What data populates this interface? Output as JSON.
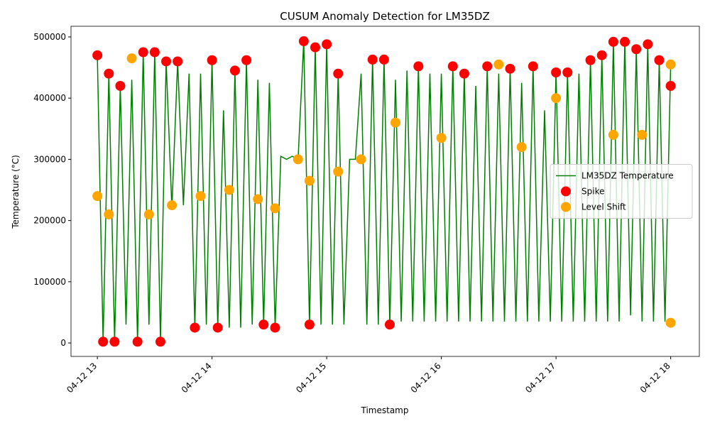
{
  "chart_data": {
    "type": "line",
    "title": "CUSUM Anomaly Detection for LM35DZ",
    "x_label": "Timestamp",
    "y_label": "Temperature (°C)",
    "xlim": [
      12.77,
      18.25
    ],
    "xticks": [
      {
        "value": 13,
        "label": "04-12 13"
      },
      {
        "value": 14,
        "label": "04-12 14"
      },
      {
        "value": 15,
        "label": "04-12 15"
      },
      {
        "value": 16,
        "label": "04-12 16"
      },
      {
        "value": 17,
        "label": "04-12 17"
      },
      {
        "value": 18,
        "label": "04-12 18"
      }
    ],
    "ylim": [
      -22000,
      517400
    ],
    "yticks": [
      0,
      100000,
      200000,
      300000,
      400000,
      500000
    ],
    "grid": false,
    "legend": "center right",
    "series": [
      {
        "name": "LM35DZ Temperature",
        "type": "line",
        "color": "#008000",
        "x": [
          13.0,
          13.05,
          13.1,
          13.15,
          13.2,
          13.25,
          13.3,
          13.35,
          13.4,
          13.45,
          13.5,
          13.55,
          13.6,
          13.65,
          13.7,
          13.75,
          13.8,
          13.85,
          13.9,
          13.95,
          14.0,
          14.05,
          14.1,
          14.15,
          14.2,
          14.25,
          14.3,
          14.35,
          14.4,
          14.45,
          14.5,
          14.55,
          14.6,
          14.65,
          14.7,
          14.75,
          14.8,
          14.85,
          14.9,
          14.95,
          15.0,
          15.05,
          15.1,
          15.15,
          15.2,
          15.25,
          15.3,
          15.35,
          15.4,
          15.45,
          15.5,
          15.55,
          15.6,
          15.65,
          15.7,
          15.75,
          15.8,
          15.85,
          15.9,
          15.95,
          16.0,
          16.05,
          16.1,
          16.15,
          16.2,
          16.25,
          16.3,
          16.35,
          16.4,
          16.45,
          16.5,
          16.55,
          16.6,
          16.65,
          16.7,
          16.75,
          16.8,
          16.85,
          16.9,
          16.95,
          17.0,
          17.05,
          17.1,
          17.15,
          17.2,
          17.25,
          17.3,
          17.35,
          17.4,
          17.45,
          17.5,
          17.55,
          17.6,
          17.65,
          17.7,
          17.75,
          17.8,
          17.85,
          17.9,
          17.95,
          18.0
        ],
        "values": [
          470000,
          2000,
          440000,
          2000,
          420000,
          30000,
          430000,
          2000,
          475000,
          30000,
          475000,
          2000,
          460000,
          220000,
          460000,
          225000,
          440000,
          25000,
          440000,
          30000,
          462000,
          25000,
          380000,
          25000,
          445000,
          25000,
          462000,
          30000,
          430000,
          30000,
          425000,
          25000,
          305000,
          300000,
          305000,
          300000,
          493000,
          30000,
          483000,
          30000,
          488000,
          30000,
          440000,
          30000,
          300000,
          300000,
          440000,
          30000,
          463000,
          30000,
          463000,
          30000,
          430000,
          35000,
          445000,
          35000,
          452000,
          35000,
          440000,
          35000,
          440000,
          35000,
          452000,
          35000,
          440000,
          35000,
          420000,
          35000,
          452000,
          35000,
          440000,
          35000,
          448000,
          35000,
          425000,
          35000,
          452000,
          35000,
          380000,
          35000,
          442000,
          35000,
          442000,
          35000,
          440000,
          35000,
          462000,
          35000,
          470000,
          35000,
          492000,
          35000,
          492000,
          45000,
          480000,
          35000,
          488000,
          35000,
          462000,
          35000,
          455000
        ]
      },
      {
        "name": "Spike",
        "type": "scatter",
        "color": "#ff0000",
        "x": [
          13.0,
          13.05,
          13.1,
          13.15,
          13.2,
          13.35,
          13.4,
          13.5,
          13.55,
          13.6,
          13.7,
          13.85,
          14.0,
          14.05,
          14.2,
          14.3,
          14.45,
          14.55,
          14.8,
          14.85,
          14.9,
          15.0,
          15.1,
          15.4,
          15.5,
          15.55,
          15.8,
          16.1,
          16.2,
          16.4,
          16.6,
          16.8,
          17.0,
          17.1,
          17.3,
          17.4,
          17.5,
          17.6,
          17.7,
          17.8,
          17.9,
          18.0
        ],
        "values": [
          470000,
          2000,
          440000,
          2000,
          420000,
          2000,
          475000,
          475000,
          2000,
          460000,
          460000,
          25000,
          462000,
          25000,
          445000,
          462000,
          30000,
          25000,
          493000,
          30000,
          483000,
          488000,
          440000,
          463000,
          463000,
          30000,
          452000,
          452000,
          440000,
          452000,
          448000,
          452000,
          442000,
          442000,
          462000,
          470000,
          492000,
          492000,
          480000,
          488000,
          462000,
          420000
        ]
      },
      {
        "name": "Level Shift",
        "type": "scatter",
        "color": "#ffa500",
        "x": [
          13.0,
          13.1,
          13.3,
          13.45,
          13.65,
          13.9,
          14.15,
          14.4,
          14.55,
          14.75,
          14.85,
          15.1,
          15.3,
          15.6,
          16.0,
          16.5,
          16.7,
          17.0,
          17.5,
          17.75,
          18.0,
          18.0
        ],
        "values": [
          240000,
          210000,
          465000,
          210000,
          225000,
          240000,
          250000,
          235000,
          220000,
          300000,
          265000,
          280000,
          300000,
          360000,
          335000,
          455000,
          320000,
          400000,
          340000,
          340000,
          455000,
          33000
        ]
      }
    ]
  }
}
